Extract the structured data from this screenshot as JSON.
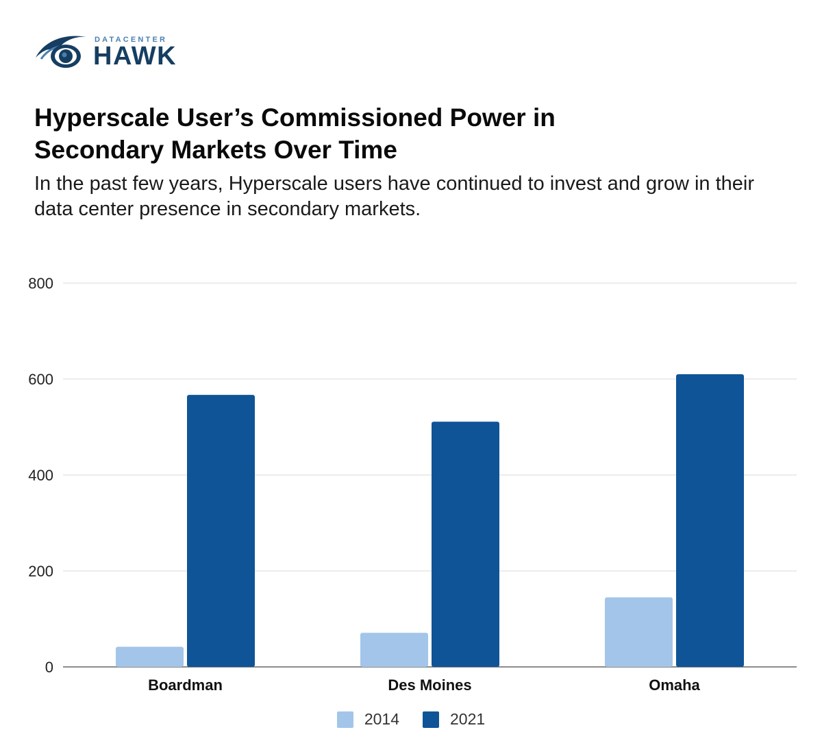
{
  "logo": {
    "small_text": "DATACENTER",
    "big_text": "HAWK",
    "icon": "hawk-eye-icon"
  },
  "colors": {
    "series_2014": "#a3c5e9",
    "series_2021": "#0f5496",
    "grid": "#d9d9d9",
    "axis": "#666666",
    "logo_dark": "#163e62",
    "logo_light": "#4a7fb0"
  },
  "chart_data": {
    "type": "bar",
    "title": "Hyperscale User’s Commissioned Power in Secondary Markets Over Time",
    "subtitle": "In the past few years, Hyperscale users have continued to invest and grow in their data center presence in secondary markets.",
    "categories": [
      "Boardman",
      "Des Moines",
      "Omaha"
    ],
    "series": [
      {
        "name": "2014",
        "values": [
          42,
          71,
          145
        ]
      },
      {
        "name": "2021",
        "values": [
          567,
          511,
          610
        ]
      }
    ],
    "ylim": [
      0,
      800
    ],
    "yticks": [
      "0",
      "200",
      "400",
      "600",
      "800"
    ],
    "xlabel": "",
    "ylabel": "",
    "grid": true,
    "legend": "bottom"
  }
}
